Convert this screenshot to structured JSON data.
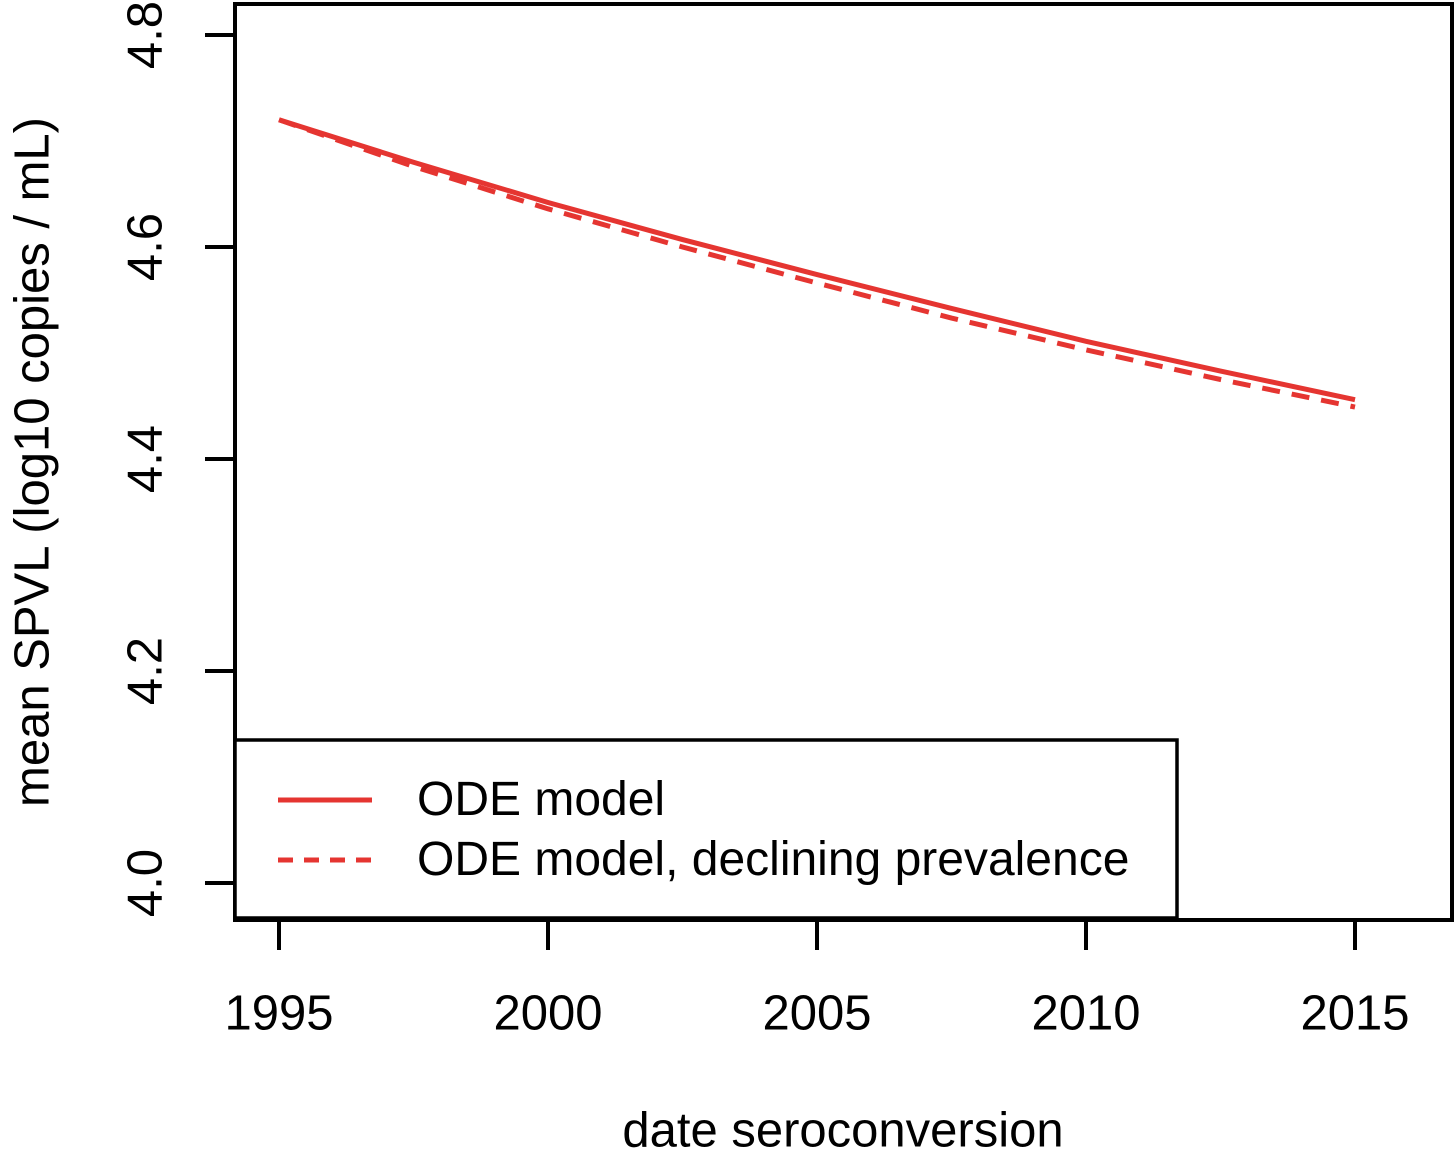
{
  "figure": {
    "background": "#ffffff"
  },
  "colors": {
    "series_red": "#e53531",
    "axis_black": "#000000"
  },
  "legend": {
    "items": [
      {
        "label": "ODE model",
        "style": "solid"
      },
      {
        "label": "ODE model, declining prevalence",
        "style": "dashed"
      }
    ],
    "position": "bottom-left"
  },
  "chart_data": {
    "type": "line",
    "title": "",
    "xlabel": "date seroconversion",
    "ylabel": "mean SPVL (log10 copies / mL)",
    "x_ticks": [
      1995,
      2000,
      2005,
      2010,
      2015
    ],
    "y_ticks": [
      "4.0",
      "4.2",
      "4.4",
      "4.6",
      "4.8"
    ],
    "xlim": [
      1994.2,
      2016.8
    ],
    "ylim": [
      3.97,
      4.83
    ],
    "grid": false,
    "legend_position": "bottom-left",
    "x": [
      1995,
      1997.5,
      2000,
      2002.5,
      2005,
      2007.5,
      2010,
      2012.5,
      2015
    ],
    "series": [
      {
        "name": "ODE model",
        "style": "solid",
        "color": "#e53531",
        "values": [
          4.72,
          4.68,
          4.642,
          4.607,
          4.574,
          4.542,
          4.511,
          4.483,
          4.456
        ]
      },
      {
        "name": "ODE model, declining prevalence",
        "style": "dashed",
        "color": "#e53531",
        "values": [
          4.72,
          4.676,
          4.636,
          4.6,
          4.566,
          4.533,
          4.503,
          4.475,
          4.449
        ]
      }
    ]
  }
}
